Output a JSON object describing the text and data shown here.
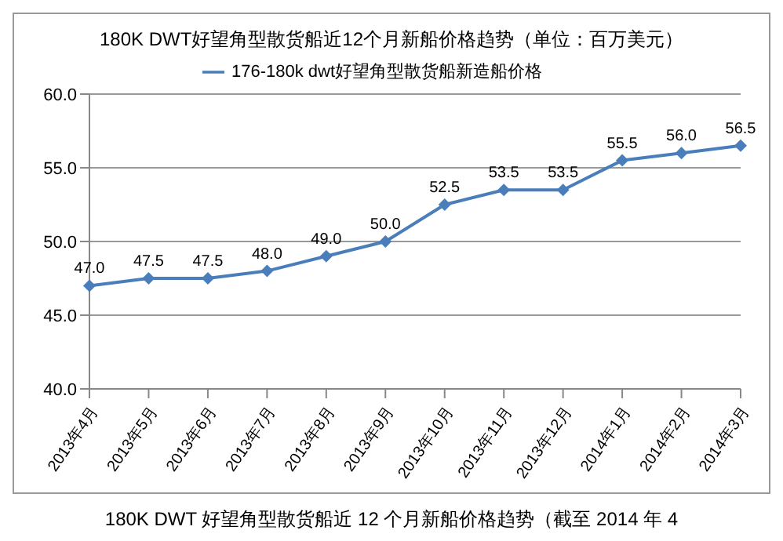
{
  "chart_data": {
    "type": "line",
    "title": "180K DWT好望角型散货船近12个月新船价格趋势（单位：百万美元）",
    "categories": [
      "2013年4月",
      "2013年5月",
      "2013年6月",
      "2013年7月",
      "2013年8月",
      "2013年9月",
      "2013年10月",
      "2013年11月",
      "2013年12月",
      "2014年1月",
      "2014年2月",
      "2014年3月"
    ],
    "series": [
      {
        "name": "176-180k dwt好望角型散货船新造船价格",
        "color": "#4a7ebb",
        "values": [
          47.0,
          47.5,
          47.5,
          48.0,
          49.0,
          50.0,
          52.5,
          53.5,
          53.5,
          55.5,
          56.0,
          56.5
        ],
        "value_labels": [
          "47.0",
          "47.5",
          "47.5",
          "48.0",
          "49.0",
          "50.0",
          "52.5",
          "53.5",
          "53.5",
          "55.5",
          "56.0",
          "56.5"
        ]
      }
    ],
    "ylim": [
      40,
      60
    ],
    "yticks": [
      {
        "value": 40,
        "label": "40.0"
      },
      {
        "value": 45,
        "label": "45.0"
      },
      {
        "value": 50,
        "label": "50.0"
      },
      {
        "value": 55,
        "label": "55.0"
      },
      {
        "value": 60,
        "label": "60.0"
      }
    ],
    "grid": "y",
    "legend": "top",
    "marker": "diamond",
    "line_style": "solid",
    "annotations": [
      "180K DWT 好望角型散货船近 12 个月新船价格趋势（截至 2014 年 4"
    ]
  }
}
